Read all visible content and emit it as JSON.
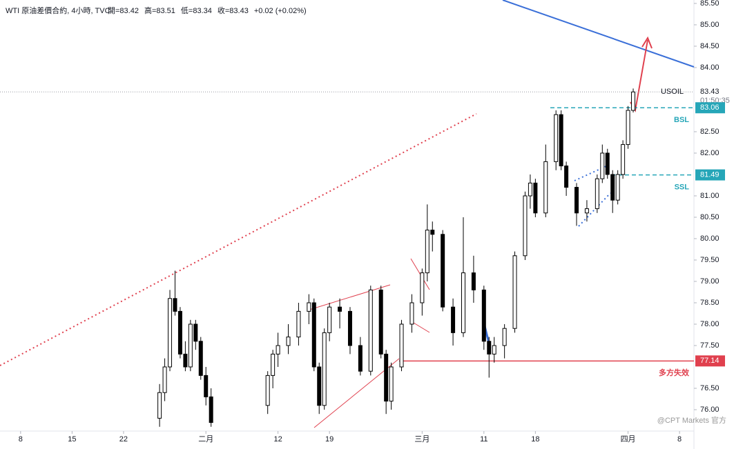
{
  "chart_data": {
    "type": "candlestick",
    "title": "WTI 原油差價合約, 4小時, TVC",
    "ohlc_legend": [
      "開=83.42",
      "高=83.51",
      "低=83.34",
      "收=83.43",
      "+0.02 (+0.02%)"
    ],
    "symbol": "USOIL",
    "last_price": 83.43,
    "countdown": "01:50:35",
    "watermark": "@CPT Markets 官方",
    "up_color": "#ffffff",
    "down_color": "#000000",
    "x": [
      13.5,
      14,
      14.5,
      15,
      15.5,
      16,
      16.5,
      17,
      17.5,
      18,
      18.5,
      24,
      24.5,
      25,
      26,
      27,
      28,
      28.5,
      29,
      29.5,
      30,
      31,
      32,
      33,
      34,
      35,
      35.5,
      36,
      37,
      38,
      39,
      39.5,
      40,
      41,
      42,
      43,
      44,
      45,
      45.5,
      46,
      47,
      48,
      49,
      49.5,
      50,
      51,
      52,
      52.5,
      53,
      54,
      55,
      56,
      56.5,
      57,
      57.5,
      58,
      58.5,
      59,
      59.5
    ],
    "open": [
      75.8,
      76.4,
      77.0,
      78.6,
      78.3,
      77.3,
      77.0,
      78.0,
      77.6,
      76.8,
      76.3,
      76.1,
      76.8,
      77.3,
      77.5,
      77.7,
      78.3,
      78.5,
      77.0,
      76.1,
      77.8,
      78.4,
      78.3,
      77.5,
      76.9,
      78.8,
      77.3,
      76.2,
      77.0,
      78.0,
      78.5,
      79.2,
      80.2,
      80.1,
      78.4,
      77.8,
      79.2,
      78.8,
      77.6,
      77.3,
      77.5,
      77.9,
      79.6,
      81.0,
      81.3,
      80.6,
      81.8,
      82.9,
      81.7,
      81.2,
      80.6,
      80.7,
      81.4,
      82.0,
      81.5,
      80.9,
      81.5,
      82.2,
      83.0
    ],
    "high": [
      76.6,
      77.2,
      78.8,
      79.25,
      78.4,
      77.6,
      78.1,
      78.1,
      77.7,
      77.0,
      76.5,
      76.9,
      77.4,
      77.8,
      78.0,
      78.5,
      78.7,
      78.6,
      77.1,
      77.9,
      78.5,
      78.6,
      78.4,
      77.7,
      78.9,
      78.9,
      77.4,
      77.1,
      78.1,
      78.7,
      79.3,
      80.8,
      80.4,
      80.2,
      78.6,
      80.5,
      79.6,
      78.9,
      77.7,
      77.7,
      78.0,
      79.7,
      81.1,
      81.5,
      81.4,
      82.2,
      83.0,
      83.0,
      81.8,
      81.3,
      80.9,
      81.5,
      82.2,
      82.1,
      81.6,
      81.6,
      82.3,
      83.1,
      83.51
    ],
    "low": [
      75.6,
      76.2,
      76.9,
      78.2,
      77.2,
      76.9,
      76.9,
      77.4,
      76.7,
      76.1,
      75.6,
      75.9,
      76.5,
      77.0,
      77.3,
      77.5,
      78.0,
      76.9,
      75.9,
      76.0,
      77.6,
      77.9,
      77.3,
      76.8,
      76.8,
      77.2,
      75.9,
      76.0,
      76.9,
      77.8,
      78.2,
      79.0,
      79.7,
      78.3,
      77.5,
      77.7,
      78.5,
      77.4,
      76.75,
      77.1,
      77.2,
      77.8,
      79.5,
      80.7,
      80.5,
      80.5,
      81.6,
      81.6,
      81.0,
      80.3,
      80.4,
      80.6,
      81.3,
      81.4,
      80.6,
      80.8,
      81.4,
      82.1,
      82.95
    ],
    "close": [
      76.4,
      77.0,
      78.6,
      78.3,
      77.3,
      77.0,
      78.0,
      77.6,
      76.8,
      76.3,
      75.7,
      76.8,
      77.3,
      77.5,
      77.7,
      78.3,
      78.5,
      77.0,
      76.1,
      77.8,
      78.4,
      78.3,
      77.5,
      76.9,
      78.8,
      77.3,
      76.2,
      77.0,
      78.0,
      78.5,
      79.2,
      80.2,
      80.1,
      78.4,
      77.8,
      79.2,
      78.8,
      77.6,
      77.3,
      77.5,
      77.9,
      79.6,
      81.0,
      81.3,
      80.6,
      81.8,
      82.9,
      81.7,
      81.2,
      80.6,
      80.7,
      81.4,
      82.0,
      81.5,
      80.9,
      81.5,
      82.2,
      83.0,
      83.43
    ],
    "levels": [
      {
        "value": 83.06,
        "label": "BSL",
        "color": "#26a6b8"
      },
      {
        "value": 81.49,
        "label": "SSL",
        "color": "#26a6b8"
      },
      {
        "value": 77.14,
        "label": "多方失效",
        "color": "#e0404e"
      }
    ],
    "xlim": [
      -2,
      65.4
    ],
    "xticks": [
      {
        "value": 0,
        "label": "8"
      },
      {
        "value": 5,
        "label": "15"
      },
      {
        "value": 10,
        "label": "22"
      },
      {
        "value": 18,
        "label": "二月"
      },
      {
        "value": 25,
        "label": "12"
      },
      {
        "value": 30,
        "label": "19"
      },
      {
        "value": 39,
        "label": "三月"
      },
      {
        "value": 45,
        "label": "11"
      },
      {
        "value": 50,
        "label": "18"
      },
      {
        "value": 59,
        "label": "四月"
      },
      {
        "value": 64,
        "label": "8"
      }
    ],
    "ylim": [
      75.5,
      85.58
    ],
    "yticks": [
      {
        "value": 76,
        "label": "76.00"
      },
      {
        "value": 76.5,
        "label": "76.50"
      },
      {
        "value": 77.5,
        "label": "77.50"
      },
      {
        "value": 78,
        "label": "78.00"
      },
      {
        "value": 78.5,
        "label": "78.50"
      },
      {
        "value": 79,
        "label": "79.00"
      },
      {
        "value": 79.5,
        "label": "79.50"
      },
      {
        "value": 80,
        "label": "80.00"
      },
      {
        "value": 80.5,
        "label": "80.50"
      },
      {
        "value": 81,
        "label": "81.00"
      },
      {
        "value": 82,
        "label": "82.00"
      },
      {
        "value": 82.5,
        "label": "82.50"
      },
      {
        "value": 84,
        "label": "84.00"
      },
      {
        "value": 84.5,
        "label": "84.50"
      },
      {
        "value": 85,
        "label": "85.00"
      },
      {
        "value": 85.5,
        "label": "85.50"
      }
    ]
  }
}
